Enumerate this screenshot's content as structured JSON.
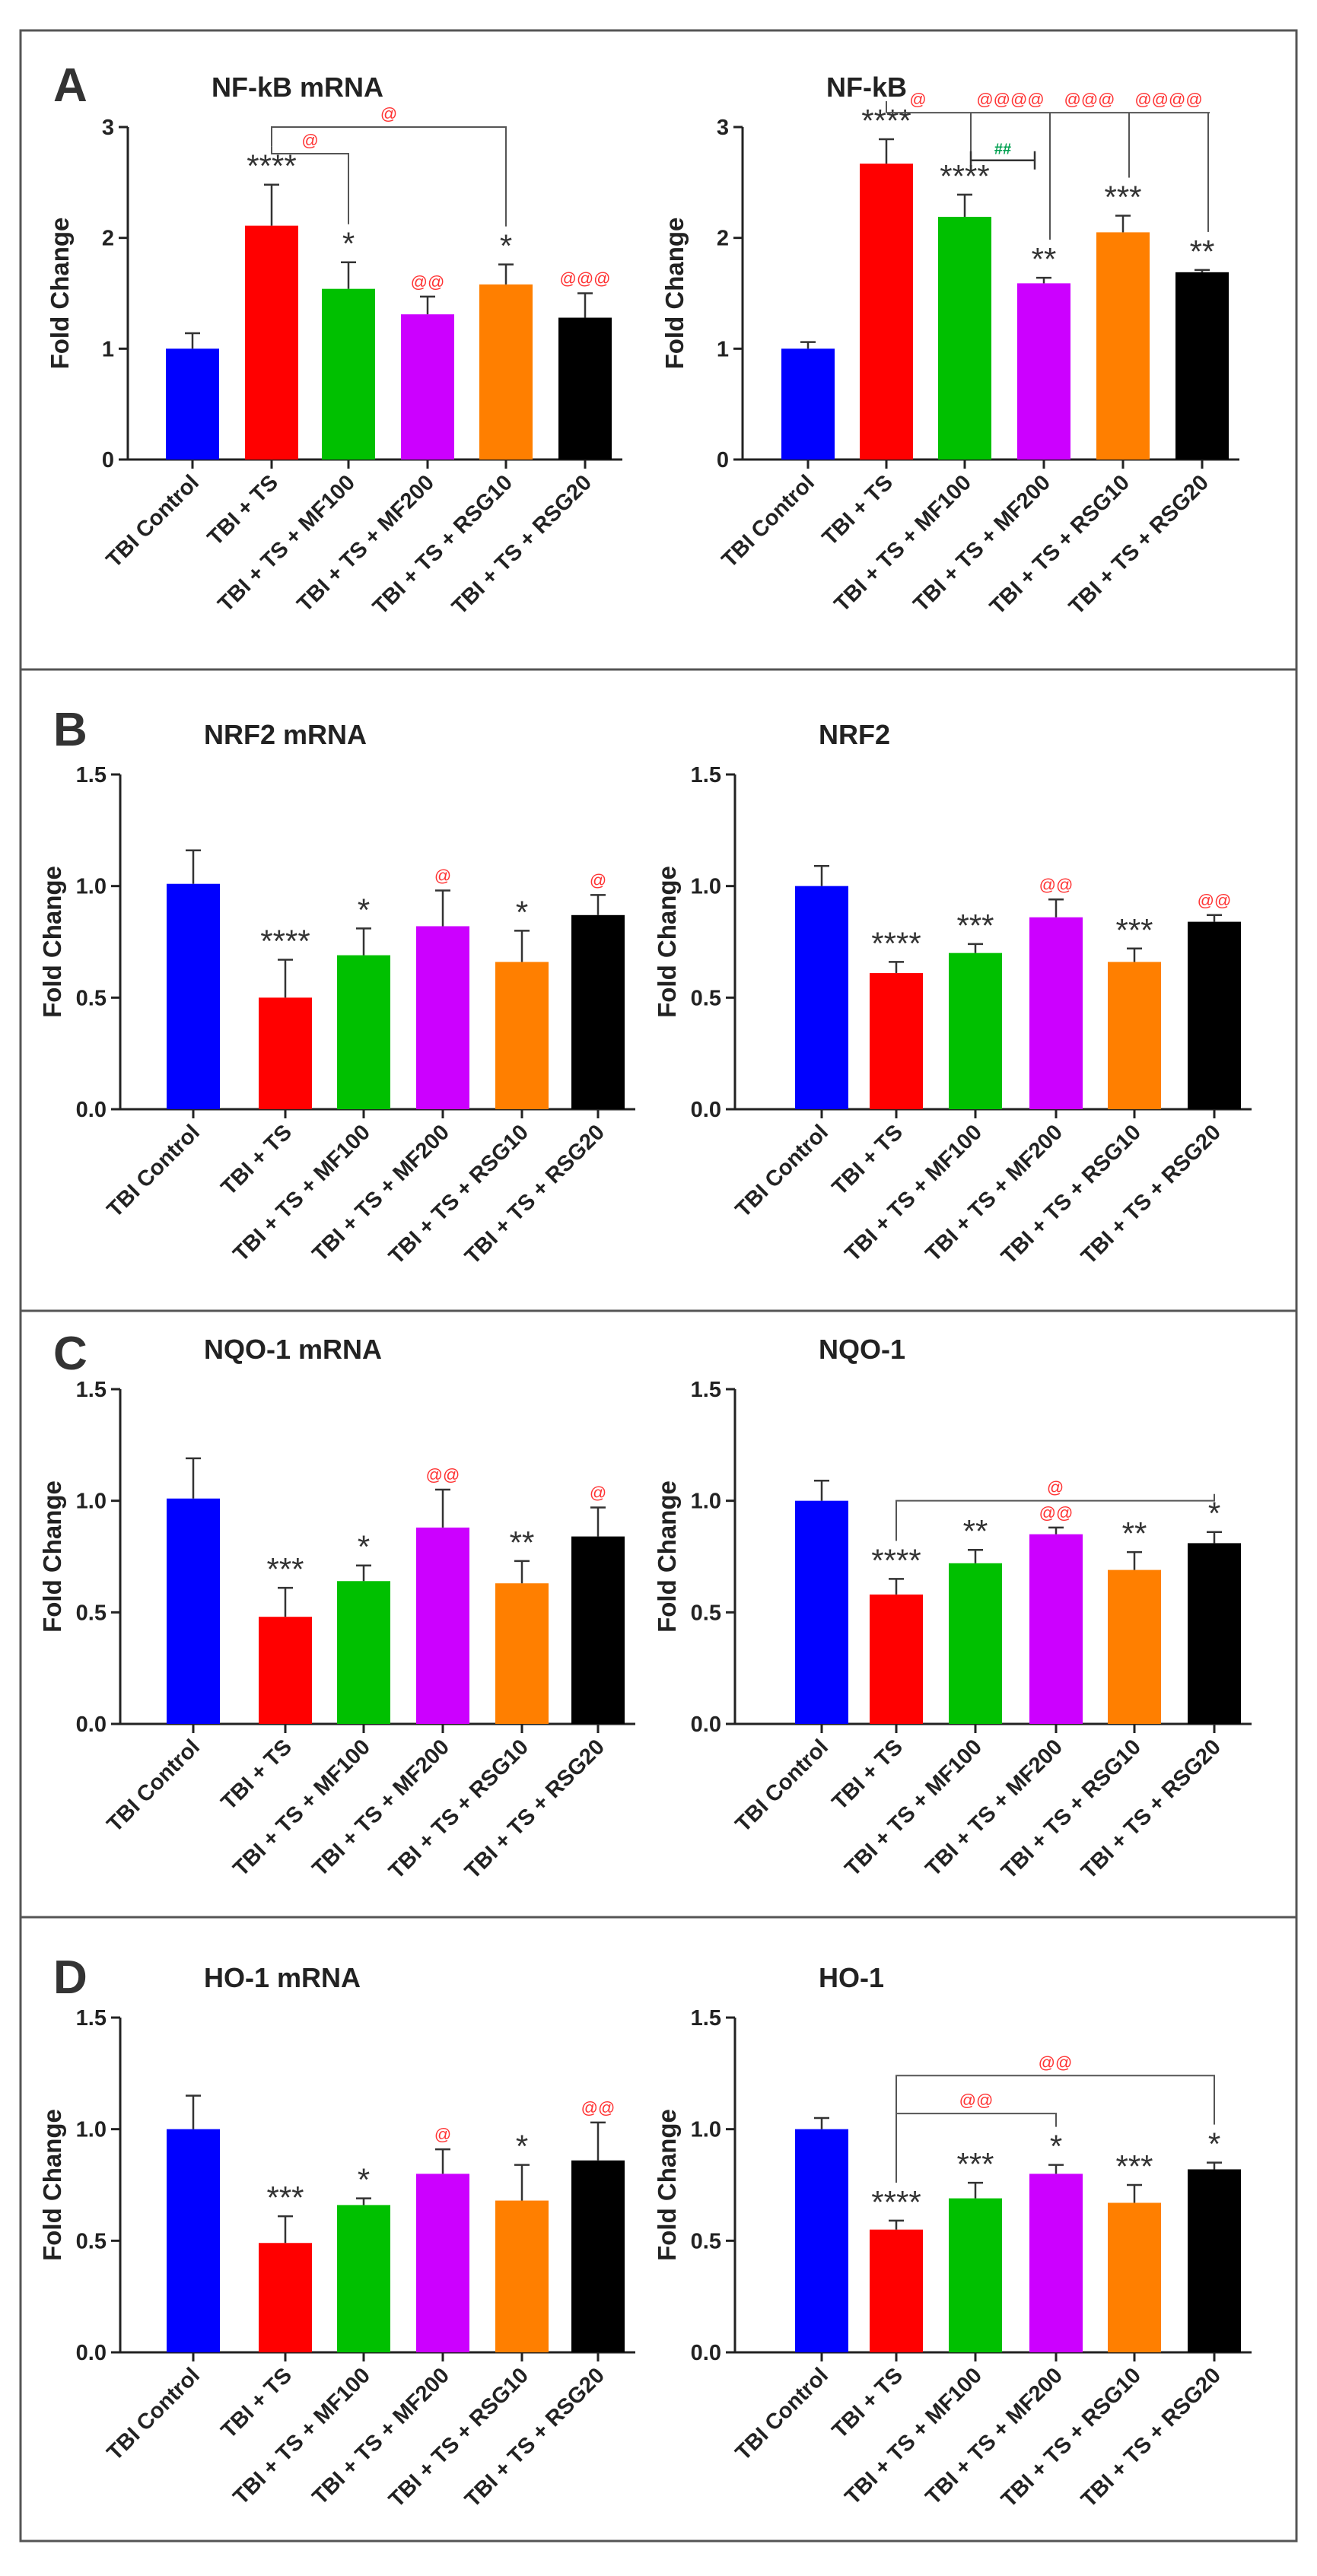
{
  "figure": {
    "panel_labels": [
      "A",
      "B",
      "C",
      "D"
    ],
    "categories": [
      "TBI Control",
      "TBI + TS",
      "TBI + TS + MF100",
      "TBI + TS + MF200",
      "TBI + TS + RSG10",
      "TBI + TS + RSG20"
    ],
    "colors": [
      "#0000ff",
      "#ff0000",
      "#00c000",
      "#cc00ff",
      "#ff7f00",
      "#000000"
    ],
    "sig_color_main": "#333333",
    "sig_color_at": "#ff3333",
    "sig_color_hash": "#00a050"
  },
  "chart_data": [
    {
      "type": "bar",
      "panel": "A",
      "title": "NF-kB mRNA",
      "ylabel": "Fold Change",
      "ylim": [
        0,
        3
      ],
      "yticks": [
        "0",
        "1",
        "2",
        "3"
      ],
      "values": [
        1.0,
        2.11,
        1.54,
        1.31,
        1.58,
        1.28
      ],
      "errors": [
        0.14,
        0.37,
        0.24,
        0.16,
        0.18,
        0.22
      ],
      "stars": [
        "",
        "****",
        "*",
        "",
        "*",
        ""
      ],
      "ats": [
        "",
        "",
        "",
        "@@",
        "",
        "@@@"
      ],
      "brackets": [
        {
          "from": 1,
          "to": 2,
          "label": "@",
          "level": 2.76
        },
        {
          "from": 1,
          "to": 4,
          "label": "@",
          "level": 3.0
        }
      ]
    },
    {
      "type": "bar",
      "panel": "A",
      "title": "NF-kB",
      "ylabel": "Fold Change",
      "ylim": [
        0,
        3
      ],
      "yticks": [
        "0",
        "1",
        "2",
        "3"
      ],
      "values": [
        1.0,
        2.67,
        2.19,
        1.59,
        2.05,
        1.69
      ],
      "errors": [
        0.06,
        0.22,
        0.2,
        0.05,
        0.15,
        0.02
      ],
      "stars": [
        "",
        "****",
        "****",
        "**",
        "***",
        "**"
      ],
      "ats": [
        "",
        "",
        "",
        "",
        "",
        ""
      ],
      "ext_brackets": {
        "from": 1,
        "level": 3.13,
        "targets": [
          2,
          3,
          4,
          5
        ],
        "labels": [
          "@",
          "@@@@",
          "@@@",
          "@@@@"
        ]
      },
      "hash_brackets": [
        {
          "from": 2,
          "to": 3,
          "label": "##",
          "level": 2.7
        }
      ]
    },
    {
      "type": "bar",
      "panel": "B",
      "title": "NRF2 mRNA",
      "ylabel": "Fold Change",
      "ylim": [
        0,
        1.5
      ],
      "yticks": [
        "0.0",
        "0.5",
        "1.0",
        "1.5"
      ],
      "values": [
        1.01,
        0.5,
        0.69,
        0.82,
        0.66,
        0.87
      ],
      "errors": [
        0.15,
        0.17,
        0.12,
        0.16,
        0.14,
        0.09
      ],
      "stars": [
        "",
        "****",
        "*",
        "",
        "*",
        ""
      ],
      "ats": [
        "",
        "",
        "",
        "@",
        "",
        "@"
      ],
      "brackets": []
    },
    {
      "type": "bar",
      "panel": "B",
      "title": "NRF2",
      "ylabel": "Fold Change",
      "ylim": [
        0,
        1.5
      ],
      "yticks": [
        "0.0",
        "0.5",
        "1.0",
        "1.5"
      ],
      "values": [
        1.0,
        0.61,
        0.7,
        0.86,
        0.66,
        0.84
      ],
      "errors": [
        0.09,
        0.05,
        0.04,
        0.08,
        0.06,
        0.03
      ],
      "stars": [
        "",
        "****",
        "***",
        "",
        "***",
        ""
      ],
      "ats": [
        "",
        "",
        "",
        "@@",
        "",
        "@@"
      ],
      "brackets": []
    },
    {
      "type": "bar",
      "panel": "C",
      "title": "NQO-1 mRNA",
      "ylabel": "Fold Change",
      "ylim": [
        0,
        1.5
      ],
      "yticks": [
        "0.0",
        "0.5",
        "1.0",
        "1.5"
      ],
      "values": [
        1.01,
        0.48,
        0.64,
        0.88,
        0.63,
        0.84
      ],
      "errors": [
        0.18,
        0.13,
        0.07,
        0.17,
        0.1,
        0.13
      ],
      "stars": [
        "",
        "***",
        "*",
        "",
        "**",
        ""
      ],
      "ats": [
        "",
        "",
        "",
        "@@",
        "",
        "@"
      ],
      "brackets": []
    },
    {
      "type": "bar",
      "panel": "C",
      "title": "NQO-1",
      "ylabel": "Fold Change",
      "ylim": [
        0,
        1.5
      ],
      "yticks": [
        "0.0",
        "0.5",
        "1.0",
        "1.5"
      ],
      "values": [
        1.0,
        0.58,
        0.72,
        0.85,
        0.69,
        0.81
      ],
      "errors": [
        0.09,
        0.07,
        0.06,
        0.03,
        0.08,
        0.05
      ],
      "stars": [
        "",
        "****",
        "**",
        "",
        "**",
        "*"
      ],
      "ats": [
        "",
        "",
        "",
        "@@",
        "",
        ""
      ],
      "brackets": [
        {
          "from": 1,
          "to": 5,
          "label": "@",
          "level": 1.0
        }
      ]
    },
    {
      "type": "bar",
      "panel": "D",
      "title": "HO-1 mRNA",
      "ylabel": "Fold Change",
      "ylim": [
        0,
        1.5
      ],
      "yticks": [
        "0.0",
        "0.5",
        "1.0",
        "1.5"
      ],
      "values": [
        1.0,
        0.49,
        0.66,
        0.8,
        0.68,
        0.86
      ],
      "errors": [
        0.15,
        0.12,
        0.03,
        0.11,
        0.16,
        0.17
      ],
      "stars": [
        "",
        "***",
        "*",
        "",
        "*",
        ""
      ],
      "ats": [
        "",
        "",
        "",
        "@",
        "",
        "@@"
      ],
      "brackets": []
    },
    {
      "type": "bar",
      "panel": "D",
      "title": "HO-1",
      "ylabel": "Fold Change",
      "ylim": [
        0,
        1.5
      ],
      "yticks": [
        "0.0",
        "0.5",
        "1.0",
        "1.5"
      ],
      "values": [
        1.0,
        0.55,
        0.69,
        0.8,
        0.67,
        0.82
      ],
      "errors": [
        0.05,
        0.04,
        0.07,
        0.04,
        0.08,
        0.03
      ],
      "stars": [
        "",
        "****",
        "***",
        "*",
        "***",
        "*"
      ],
      "ats": [
        "",
        "",
        "",
        "",
        "",
        ""
      ],
      "brackets": [
        {
          "from": 1,
          "to": 3,
          "label": "@@",
          "level": 1.07
        },
        {
          "from": 1,
          "to": 5,
          "label": "@@",
          "level": 1.24
        }
      ]
    }
  ]
}
